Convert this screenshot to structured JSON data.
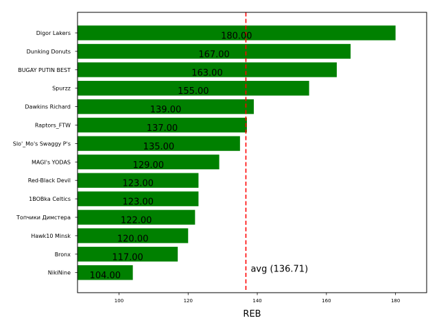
{
  "chart_data": {
    "type": "bar",
    "orientation": "horizontal",
    "xlabel": "REB",
    "xlim": [
      88,
      189
    ],
    "xticks": [
      100,
      120,
      140,
      160,
      180
    ],
    "bar_color": "#008000",
    "categories": [
      "Digor Lakers",
      "Dunking Donuts",
      "BUGAY PUTIN BEST",
      "Spurzz",
      "Dawkins Richard",
      "Raptors_FTW",
      "Slo'_Mo's Swaggy P's",
      "MAGI's YODAS",
      "Red-Black Devil",
      "1BOBka Celtics",
      "Топчики Димстера",
      "Hawk10 Minsk",
      "Bronx",
      "NikiNine"
    ],
    "values": [
      180,
      167,
      163,
      155,
      139,
      137,
      135,
      129,
      123,
      123,
      122,
      120,
      117,
      104
    ],
    "value_labels": [
      "180.00",
      "167.00",
      "163.00",
      "155.00",
      "139.00",
      "137.00",
      "135.00",
      "129.00",
      "123.00",
      "123.00",
      "122.00",
      "120.00",
      "117.00",
      "104.00"
    ],
    "average": {
      "value": 136.71,
      "label": "avg (136.71)",
      "color": "#ff0000",
      "style": "dashed"
    },
    "grid": false
  }
}
